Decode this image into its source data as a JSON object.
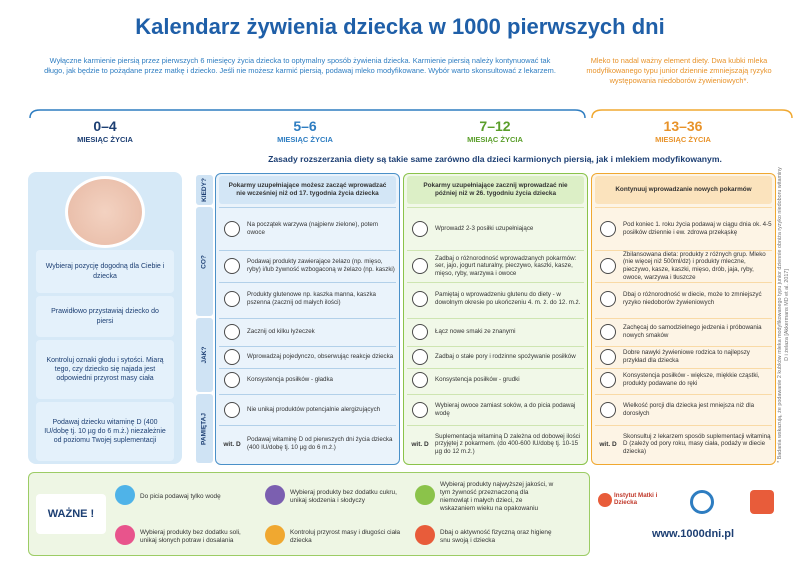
{
  "header": {
    "title": "Kalendarz żywienia dziecka w 1000 pierwszych dni",
    "intro": "Wyłączne karmienie piersią przez pierwszych 6 miesięcy życia dziecka to optymalny sposób żywienia dziecka. Karmienie piersią należy kontynuować tak długo, jak będzie to pożądane przez matkę i dziecko. Jeśli nie możesz karmić piersią, podawaj mleko modyfikowane. Wybór warto skonsultować z lekarzem.",
    "note": "Mleko to nadal ważny element diety. Dwa kubki mleka modyfikowanego typu junior dziennie zmniejszają ryzyko występowania niedoborów żywieniowych*."
  },
  "stages": [
    {
      "range": "0–4",
      "label": "MIESIĄC ŻYCIA"
    },
    {
      "range": "5–6",
      "label": "MIESIĄC ŻYCIA"
    },
    {
      "range": "7–12",
      "label": "MIESIĄC ŻYCIA"
    },
    {
      "range": "13–36",
      "label": "MIESIĄC ŻYCIA"
    }
  ],
  "subtitle": "Zasady rozszerzania diety są takie same zarówno dla dzieci karmionych piersią, jak i mlekiem modyfikowanym.",
  "left_tips": [
    "Wybieraj pozycję dogodną dla Ciebie i dziecka",
    "Prawidłowo przystawiaj dziecko do piersi",
    "Kontroluj oznaki głodu i sytości. Miarą tego, czy dziecko się najada jest odpowiedni przyrost masy ciała",
    "Podawaj dziecku witaminę D (400 IU/dobę tj. 10 µg do 6 m.ż.) niezależnie od poziomu Twojej suplementacji"
  ],
  "row_labels": [
    "KIEDY?",
    "CO?",
    "JAK?",
    "PAMIĘTAJ"
  ],
  "columns": [
    {
      "when": "Pokarmy uzupełniające możesz zacząć wprowadzać nie wcześniej niż od 17. tygodnia życia dziecka",
      "vitamin_label": "wit. D",
      "items": [
        "Na początek warzywa (najpierw zielone), potem owoce",
        "Podawaj produkty zawierające żelazo (np. mięso, ryby) i/lub żywność wzbogaconą w żelazo (np. kaszki)",
        "Produkty glutenowe np. kaszka manna, kaszka pszenna (zacznij od małych ilości)",
        "Zacznij od kilku łyżeczek",
        "Wprowadzaj pojedynczo, obserwując reakcje dziecka",
        "Konsystencja posiłków - gładka",
        "Nie unikaj produktów potencjalnie alergizujących",
        "Podawaj witaminę D od pierwszych dni życia dziecka (400 IU/dobę tj. 10 µg do 6 m.ż.)"
      ]
    },
    {
      "when": "Pokarmy uzupełniające zacznij wprowadzać nie później niż w 26. tygodniu życia dziecka",
      "vitamin_label": "wit. D",
      "items": [
        "Wprowadź 2-3 posiłki uzupełniające",
        "Zadbaj o różnorodność wprowadzanych pokarmów: ser, jajo, jogurt naturalny, pieczywo, kaszki, kasze, mięso, ryby, warzywa i owoce",
        "Pamiętaj o wprowadzeniu glutenu do diety - w dowolnym okresie po ukończeniu 4. m. ż. do 12. m.ż.",
        "Łącz nowe smaki ze znanymi",
        "Zadbaj o stałe pory i rodzinne spożywanie posiłków",
        "Konsystencja posiłków - grudki",
        "Wybieraj owoce zamiast soków, a do picia podawaj wodę",
        "Suplementacja witaminą D zależna od dobowej ilości przyjętej z pokarmem. (do 400-600 IU/dobę tj. 10-15 µg do 12 m.ż.)"
      ]
    },
    {
      "when": "Kontynuuj wprowadzanie nowych pokarmów",
      "vitamin_label": "wit. D",
      "items": [
        "Pod koniec 1. roku życia podawaj w ciągu dnia ok. 4-5 posiłków dziennie i ew. zdrowa przekąskę",
        "Zbilansowana dieta: produkty z różnych grup. Mleko (nie więcej niż 500ml/dz) i produkty mleczne, pieczywo, kasze, kaszki, mięso, drób, jaja, ryby, owoce, warzywa i tłuszcze",
        "Dbaj o różnorodność w diecie, może to zmniejszyć ryzyko niedoborów żywieniowych",
        "Zachęcaj do samodzielnego jedzenia i próbowania nowych smaków",
        "Dobre nawyki żywieniowe rodzica to najlepszy przykład dla dziecka",
        "Konsystencja posiłków - większe, miękkie cząstki, produkty podawane do ręki",
        "Wielkość porcji dla dziecka jest mniejsza niż dla dorosłych",
        "Skonsultuj z lekarzem sposób suplementacji witaminą D (zależy od pory roku, masy ciała, podaży w diecie dziecka)"
      ]
    }
  ],
  "side_note": "* Badania wskazują, że podawanie 2 kubków mleka modyfikowanego typu junior dziennie obniża ryzyko niedoboru witaminy D i żelaza [Akkermans MD et al. 2017]",
  "important": {
    "label": "WAŻNE !",
    "tips": [
      "Do picia podawaj tylko wodę",
      "Wybieraj produkty bez dodatku soli, unikaj słonych potraw i dosalania",
      "Wybieraj produkty bez dodatku cukru, unikaj słodzenia i słodyczy",
      "Kontroluj przyrost masy i długości ciała dziecka",
      "Wybieraj produkty najwyższej jakości, w tym żywność przeznaczoną dla niemowląt i małych dzieci, ze wskazaniem wieku na opakowaniu",
      "Dbaj o aktywność fizyczną oraz higienę snu swoją i dziecka"
    ]
  },
  "footer": {
    "logo": "Instytut Matki i Dziecka",
    "url": "www.1000dni.pl"
  }
}
